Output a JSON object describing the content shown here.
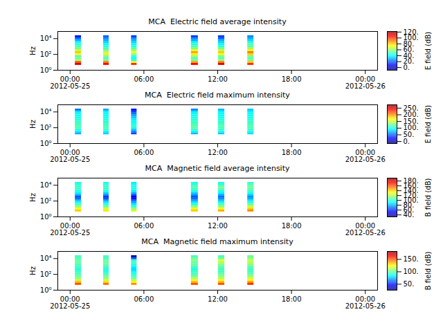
{
  "chart_data": [
    {
      "type": "heatmap",
      "title": "MCA  Electric field average intensity",
      "y_label": "Hz",
      "log": "y",
      "color": "jet",
      "xlim": [
        "2012-05-24T23:00",
        "2012-05-26T01:00"
      ],
      "xticks": [
        {
          "value": "2012-05-25T00:00",
          "label": "00:00\n2012-05-25"
        },
        {
          "value": "2012-05-25T06:00",
          "label": "06:00"
        },
        {
          "value": "2012-05-25T12:00",
          "label": "12:00"
        },
        {
          "value": "2012-05-25T18:00",
          "label": "18:00"
        },
        {
          "value": "2012-05-26T00:00",
          "label": "00:00\n2012-05-26"
        }
      ],
      "ylim": [
        1,
        80000
      ],
      "yticks": [
        {
          "value": 1,
          "label": "10⁰"
        },
        {
          "value": 100,
          "label": "10²"
        },
        {
          "value": 10000,
          "label": "10⁴"
        }
      ],
      "x_bins": [
        [
          "2012-05-25T00:25",
          "2012-05-25T00:55"
        ],
        [
          "2012-05-25T02:43",
          "2012-05-25T03:10"
        ],
        [
          "2012-05-25T04:59",
          "2012-05-25T05:26"
        ],
        [
          "2012-05-25T09:51",
          "2012-05-25T10:25"
        ],
        [
          "2012-05-25T12:03",
          "2012-05-25T12:34"
        ],
        [
          "2012-05-25T14:26",
          "2012-05-25T14:56"
        ]
      ],
      "y_bins": [
        4.22,
        7.5,
        13.3,
        23.7,
        42.2,
        75,
        133,
        237,
        422,
        750,
        1330,
        2370,
        4220,
        7500,
        13300,
        23700
      ],
      "cells": [
        [
          110,
          95,
          60,
          55,
          50,
          70,
          80,
          65,
          55,
          50,
          45,
          40,
          30,
          20,
          10
        ],
        [
          105,
          90,
          55,
          50,
          55,
          75,
          65,
          55,
          50,
          45,
          40,
          35,
          30,
          25,
          20
        ],
        [
          100,
          70,
          45,
          40,
          45,
          60,
          70,
          60,
          50,
          45,
          40,
          35,
          30,
          25,
          15
        ],
        [
          105,
          85,
          55,
          50,
          60,
          75,
          85,
          70,
          55,
          50,
          45,
          40,
          30,
          25,
          15
        ],
        [
          110,
          90,
          60,
          50,
          55,
          70,
          80,
          65,
          55,
          45,
          40,
          35,
          30,
          20,
          15
        ],
        [
          100,
          80,
          55,
          50,
          55,
          80,
          90,
          75,
          60,
          50,
          50,
          45,
          35,
          30,
          25
        ]
      ],
      "colorbar": {
        "label": "E field (dB)",
        "range": [
          -9,
          122
        ],
        "ticks": [
          {
            "value": 0,
            "label": "0."
          },
          {
            "value": 20,
            "label": "20."
          },
          {
            "value": 40,
            "label": "40."
          },
          {
            "value": 60,
            "label": "60."
          },
          {
            "value": 80,
            "label": "80."
          },
          {
            "value": 100,
            "label": "100."
          },
          {
            "value": 120,
            "label": "120."
          }
        ]
      }
    },
    {
      "type": "heatmap",
      "title": "MCA  Electric field maximum intensity",
      "y_label": "Hz",
      "log": "y",
      "color": "jet",
      "xlim": [
        "2012-05-24T23:00",
        "2012-05-26T01:00"
      ],
      "xticks": [
        {
          "value": "2012-05-25T00:00",
          "label": "00:00\n2012-05-25"
        },
        {
          "value": "2012-05-25T06:00",
          "label": "06:00"
        },
        {
          "value": "2012-05-25T12:00",
          "label": "12:00"
        },
        {
          "value": "2012-05-25T18:00",
          "label": "18:00"
        },
        {
          "value": "2012-05-26T00:00",
          "label": "00:00\n2012-05-26"
        }
      ],
      "ylim": [
        1,
        80000
      ],
      "yticks": [
        {
          "value": 1,
          "label": "10⁰"
        },
        {
          "value": 100,
          "label": "10²"
        },
        {
          "value": 10000,
          "label": "10⁴"
        }
      ],
      "x_bins": [
        [
          "2012-05-25T00:25",
          "2012-05-25T00:55"
        ],
        [
          "2012-05-25T02:43",
          "2012-05-25T03:10"
        ],
        [
          "2012-05-25T04:59",
          "2012-05-25T05:26"
        ],
        [
          "2012-05-25T09:51",
          "2012-05-25T10:25"
        ],
        [
          "2012-05-25T12:03",
          "2012-05-25T12:34"
        ],
        [
          "2012-05-25T14:26",
          "2012-05-25T14:56"
        ]
      ],
      "y_bins": [
        4.22,
        7.5,
        13.3,
        23.7,
        42.2,
        75,
        133,
        237,
        422,
        750,
        1330,
        2370,
        4220,
        7500,
        13300,
        23700
      ],
      "cells": [
        [
          null,
          null,
          70,
          90,
          105,
          115,
          115,
          110,
          110,
          105,
          100,
          100,
          95,
          85,
          55
        ],
        [
          null,
          null,
          80,
          95,
          110,
          115,
          110,
          110,
          105,
          105,
          100,
          95,
          95,
          90,
          70
        ],
        [
          null,
          null,
          40,
          60,
          80,
          100,
          105,
          100,
          95,
          90,
          80,
          70,
          55,
          40,
          25
        ],
        [
          null,
          null,
          75,
          95,
          110,
          120,
          115,
          110,
          110,
          105,
          100,
          100,
          95,
          85,
          60
        ],
        [
          null,
          null,
          80,
          100,
          110,
          115,
          115,
          110,
          105,
          105,
          100,
          95,
          95,
          90,
          75
        ],
        [
          null,
          null,
          85,
          100,
          110,
          115,
          115,
          110,
          110,
          105,
          100,
          100,
          95,
          90,
          80
        ]
      ],
      "colorbar": {
        "label": "E field (dB)",
        "range": [
          -15,
          275
        ],
        "ticks": [
          {
            "value": 0,
            "label": "0."
          },
          {
            "value": 50,
            "label": "50."
          },
          {
            "value": 100,
            "label": "100."
          },
          {
            "value": 150,
            "label": "150."
          },
          {
            "value": 200,
            "label": "200."
          },
          {
            "value": 250,
            "label": "250."
          }
        ]
      }
    },
    {
      "type": "heatmap",
      "title": "MCA  Magnetic field average intensity",
      "y_label": "Hz",
      "log": "y",
      "color": "jet",
      "xlim": [
        "2012-05-24T23:00",
        "2012-05-26T01:00"
      ],
      "xticks": [
        {
          "value": "2012-05-25T00:00",
          "label": "00:00\n2012-05-25"
        },
        {
          "value": "2012-05-25T06:00",
          "label": "06:00"
        },
        {
          "value": "2012-05-25T12:00",
          "label": "12:00"
        },
        {
          "value": "2012-05-25T18:00",
          "label": "18:00"
        },
        {
          "value": "2012-05-26T00:00",
          "label": "00:00\n2012-05-26"
        }
      ],
      "ylim": [
        1,
        80000
      ],
      "yticks": [
        {
          "value": 1,
          "label": "10⁰"
        },
        {
          "value": 100,
          "label": "10²"
        },
        {
          "value": 10000,
          "label": "10⁴"
        }
      ],
      "x_bins": [
        [
          "2012-05-25T00:25",
          "2012-05-25T00:55"
        ],
        [
          "2012-05-25T02:43",
          "2012-05-25T03:10"
        ],
        [
          "2012-05-25T04:59",
          "2012-05-25T05:26"
        ],
        [
          "2012-05-25T09:51",
          "2012-05-25T10:25"
        ],
        [
          "2012-05-25T12:03",
          "2012-05-25T12:34"
        ],
        [
          "2012-05-25T14:26",
          "2012-05-25T14:56"
        ]
      ],
      "y_bins": [
        4.22,
        7.5,
        13.3,
        23.7,
        42.2,
        75,
        133,
        237,
        422,
        750,
        1330,
        2370,
        4220,
        7500,
        13300,
        23700
      ],
      "cells": [
        [
          140,
          130,
          115,
          105,
          95,
          85,
          70,
          65,
          80,
          90,
          95,
          100,
          100,
          100,
          95
        ],
        [
          135,
          125,
          110,
          100,
          90,
          80,
          65,
          60,
          75,
          85,
          95,
          100,
          100,
          100,
          95
        ],
        [
          125,
          115,
          100,
          90,
          80,
          70,
          55,
          50,
          65,
          80,
          90,
          95,
          95,
          95,
          90
        ],
        [
          140,
          130,
          115,
          100,
          90,
          80,
          70,
          65,
          75,
          85,
          95,
          100,
          105,
          100,
          95
        ],
        [
          145,
          130,
          115,
          105,
          95,
          85,
          75,
          70,
          80,
          90,
          95,
          105,
          110,
          100,
          95
        ],
        [
          150,
          140,
          125,
          110,
          100,
          90,
          80,
          75,
          85,
          95,
          100,
          105,
          110,
          105,
          100
        ]
      ],
      "colorbar": {
        "label": "B field (dB)",
        "range": [
          32,
          192
        ],
        "ticks": [
          {
            "value": 40,
            "label": "40."
          },
          {
            "value": 60,
            "label": "60."
          },
          {
            "value": 80,
            "label": "80."
          },
          {
            "value": 100,
            "label": "100."
          },
          {
            "value": 120,
            "label": "120."
          },
          {
            "value": 140,
            "label": "140."
          },
          {
            "value": 160,
            "label": "160."
          },
          {
            "value": 180,
            "label": "180."
          }
        ]
      }
    },
    {
      "type": "heatmap",
      "title": "MCA  Magnetic field maximum intensity",
      "y_label": "Hz",
      "log": "y",
      "color": "jet",
      "xlim": [
        "2012-05-24T23:00",
        "2012-05-26T01:00"
      ],
      "xticks": [
        {
          "value": "2012-05-25T00:00",
          "label": "00:00\n2012-05-25"
        },
        {
          "value": "2012-05-25T06:00",
          "label": "06:00"
        },
        {
          "value": "2012-05-25T12:00",
          "label": "12:00"
        },
        {
          "value": "2012-05-25T18:00",
          "label": "18:00"
        },
        {
          "value": "2012-05-26T00:00",
          "label": "00:00\n2012-05-26"
        }
      ],
      "ylim": [
        1,
        80000
      ],
      "yticks": [
        {
          "value": 1,
          "label": "10⁰"
        },
        {
          "value": 100,
          "label": "10²"
        },
        {
          "value": 10000,
          "label": "10⁴"
        }
      ],
      "x_bins": [
        [
          "2012-05-25T00:25",
          "2012-05-25T00:55"
        ],
        [
          "2012-05-25T02:43",
          "2012-05-25T03:10"
        ],
        [
          "2012-05-25T04:59",
          "2012-05-25T05:26"
        ],
        [
          "2012-05-25T09:51",
          "2012-05-25T10:25"
        ],
        [
          "2012-05-25T12:03",
          "2012-05-25T12:34"
        ],
        [
          "2012-05-25T14:26",
          "2012-05-25T14:56"
        ]
      ],
      "y_bins": [
        4.22,
        7.5,
        13.3,
        23.7,
        42.2,
        75,
        133,
        237,
        422,
        750,
        1330,
        2370,
        4220,
        7500,
        13300,
        23700
      ],
      "cells": [
        [
          150,
          135,
          115,
          105,
          100,
          95,
          95,
          90,
          90,
          95,
          95,
          100,
          100,
          95,
          95
        ],
        [
          145,
          130,
          115,
          105,
          100,
          95,
          90,
          90,
          90,
          95,
          100,
          100,
          100,
          95,
          95
        ],
        [
          140,
          125,
          110,
          100,
          95,
          90,
          85,
          80,
          80,
          85,
          90,
          95,
          90,
          60,
          30
        ],
        [
          150,
          135,
          120,
          110,
          100,
          95,
          95,
          90,
          90,
          95,
          100,
          100,
          105,
          100,
          95
        ],
        [
          150,
          135,
          120,
          110,
          105,
          100,
          95,
          95,
          95,
          100,
          105,
          110,
          120,
          100,
          95
        ],
        [
          155,
          140,
          125,
          115,
          105,
          100,
          95,
          95,
          95,
          100,
          105,
          110,
          115,
          105,
          100
        ]
      ],
      "colorbar": {
        "label": "B field (dB)",
        "range": [
          26,
          182
        ],
        "ticks": [
          {
            "value": 50,
            "label": "50."
          },
          {
            "value": 100,
            "label": "100."
          },
          {
            "value": 150,
            "label": "150."
          }
        ]
      }
    }
  ]
}
